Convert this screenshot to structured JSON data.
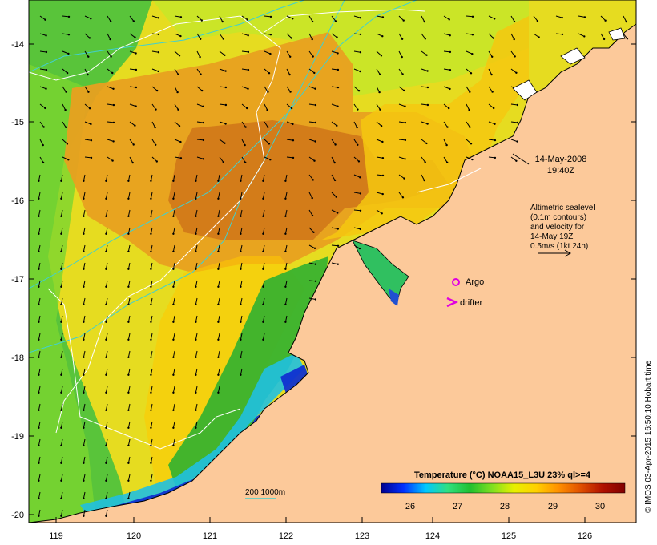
{
  "map": {
    "lon_ticks": [
      "119",
      "120",
      "121",
      "122",
      "123",
      "124",
      "125",
      "126"
    ],
    "lat_ticks": [
      "-14",
      "-15",
      "-16",
      "-17",
      "-18",
      "-19",
      "-20"
    ]
  },
  "annotations": {
    "date_line": "14-May-2008",
    "time_line": "19:40Z",
    "legend_lines": [
      "Altimetric sealevel",
      "(0.1m contours)",
      "and velocity for",
      "14-May 19Z",
      "0.5m/s (1kt 24h)"
    ],
    "argo_label": "Argo",
    "drifter_label": "drifter",
    "depth_label": "200  1000m"
  },
  "colorbar": {
    "title": "Temperature (°C) NOAA15_L3U 23% ql>=4",
    "tick_labels": [
      "26",
      "27",
      "28",
      "29",
      "30"
    ],
    "stops": [
      "#000090",
      "#0030ff",
      "#00c8ff",
      "#30e080",
      "#20c030",
      "#80e020",
      "#e8f000",
      "#ffd000",
      "#ff9000",
      "#e05000",
      "#b01000",
      "#800000"
    ]
  },
  "credit": "© IMOS 03-Apr-2015 16:50:10 Hobart time",
  "colors": {
    "land": "#fcc99a",
    "coast": "#000000",
    "isobath": "#40d0d0",
    "contour": "#ffffff",
    "argo_marker": "#e000e0",
    "drifter_marker": "#e000e0"
  }
}
